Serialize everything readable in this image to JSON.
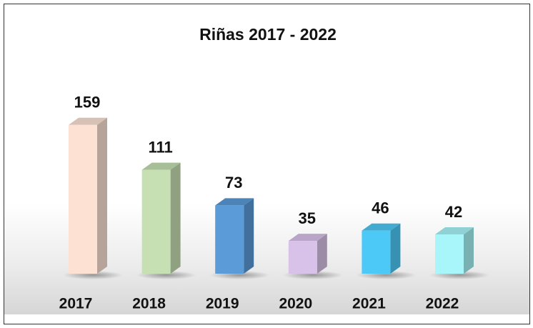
{
  "chart_data": {
    "type": "bar3d",
    "title": "Riñas 2017 - 2022",
    "categories": [
      "2017",
      "2018",
      "2019",
      "2020",
      "2021",
      "2022"
    ],
    "values": [
      159,
      111,
      73,
      35,
      46,
      42
    ],
    "colors": [
      "#fde2d4",
      "#c6e0b3",
      "#5b9bd8",
      "#d8c2ea",
      "#4cc9f7",
      "#a8f6f9"
    ]
  }
}
